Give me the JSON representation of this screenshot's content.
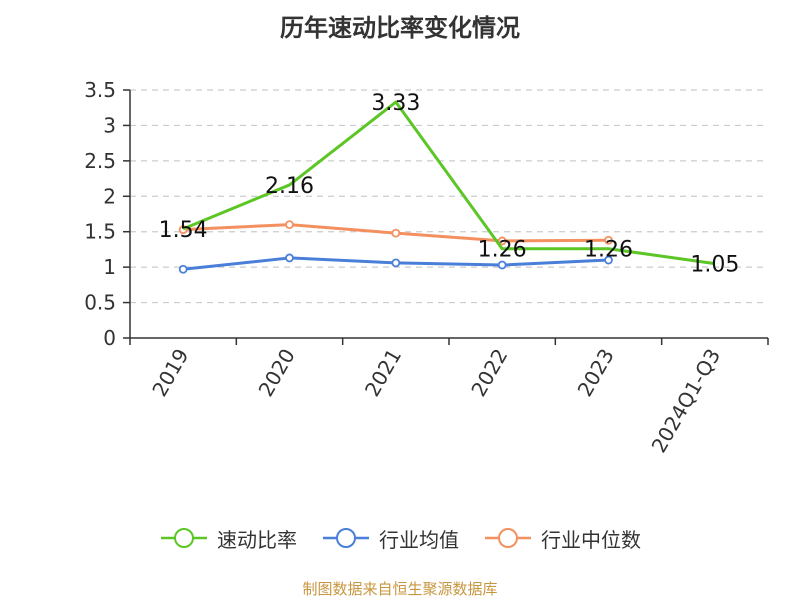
{
  "title": "历年速动比率变化情况",
  "source": "制图数据来自恒生聚源数据库",
  "colors": {
    "速动比率": "#5cc626",
    "行业均值": "#4a7fd9",
    "行业中位数": "#f4905f",
    "grid": "#cccccc",
    "axis": "#333333"
  },
  "chart_data": {
    "type": "line",
    "categories": [
      "2019",
      "2020",
      "2021",
      "2022",
      "2023",
      "2024Q1-Q3"
    ],
    "ylim": [
      0,
      3.5
    ],
    "yticks": [
      "0",
      "0.5",
      "1",
      "1.5",
      "2",
      "2.5",
      "3",
      "3.5"
    ],
    "grid": "horizontal-dashed",
    "legend_position": "bottom",
    "series": [
      {
        "name": "速动比率",
        "values": [
          1.54,
          2.16,
          3.33,
          1.26,
          1.26,
          1.05
        ],
        "labels": [
          "1.54",
          "2.16",
          "3.33",
          "1.26",
          "1.26",
          "1.05"
        ]
      },
      {
        "name": "行业均值",
        "values": [
          0.97,
          1.13,
          1.06,
          1.03,
          1.1,
          null
        ]
      },
      {
        "name": "行业中位数",
        "values": [
          1.53,
          1.6,
          1.48,
          1.37,
          1.38,
          null
        ]
      }
    ]
  }
}
